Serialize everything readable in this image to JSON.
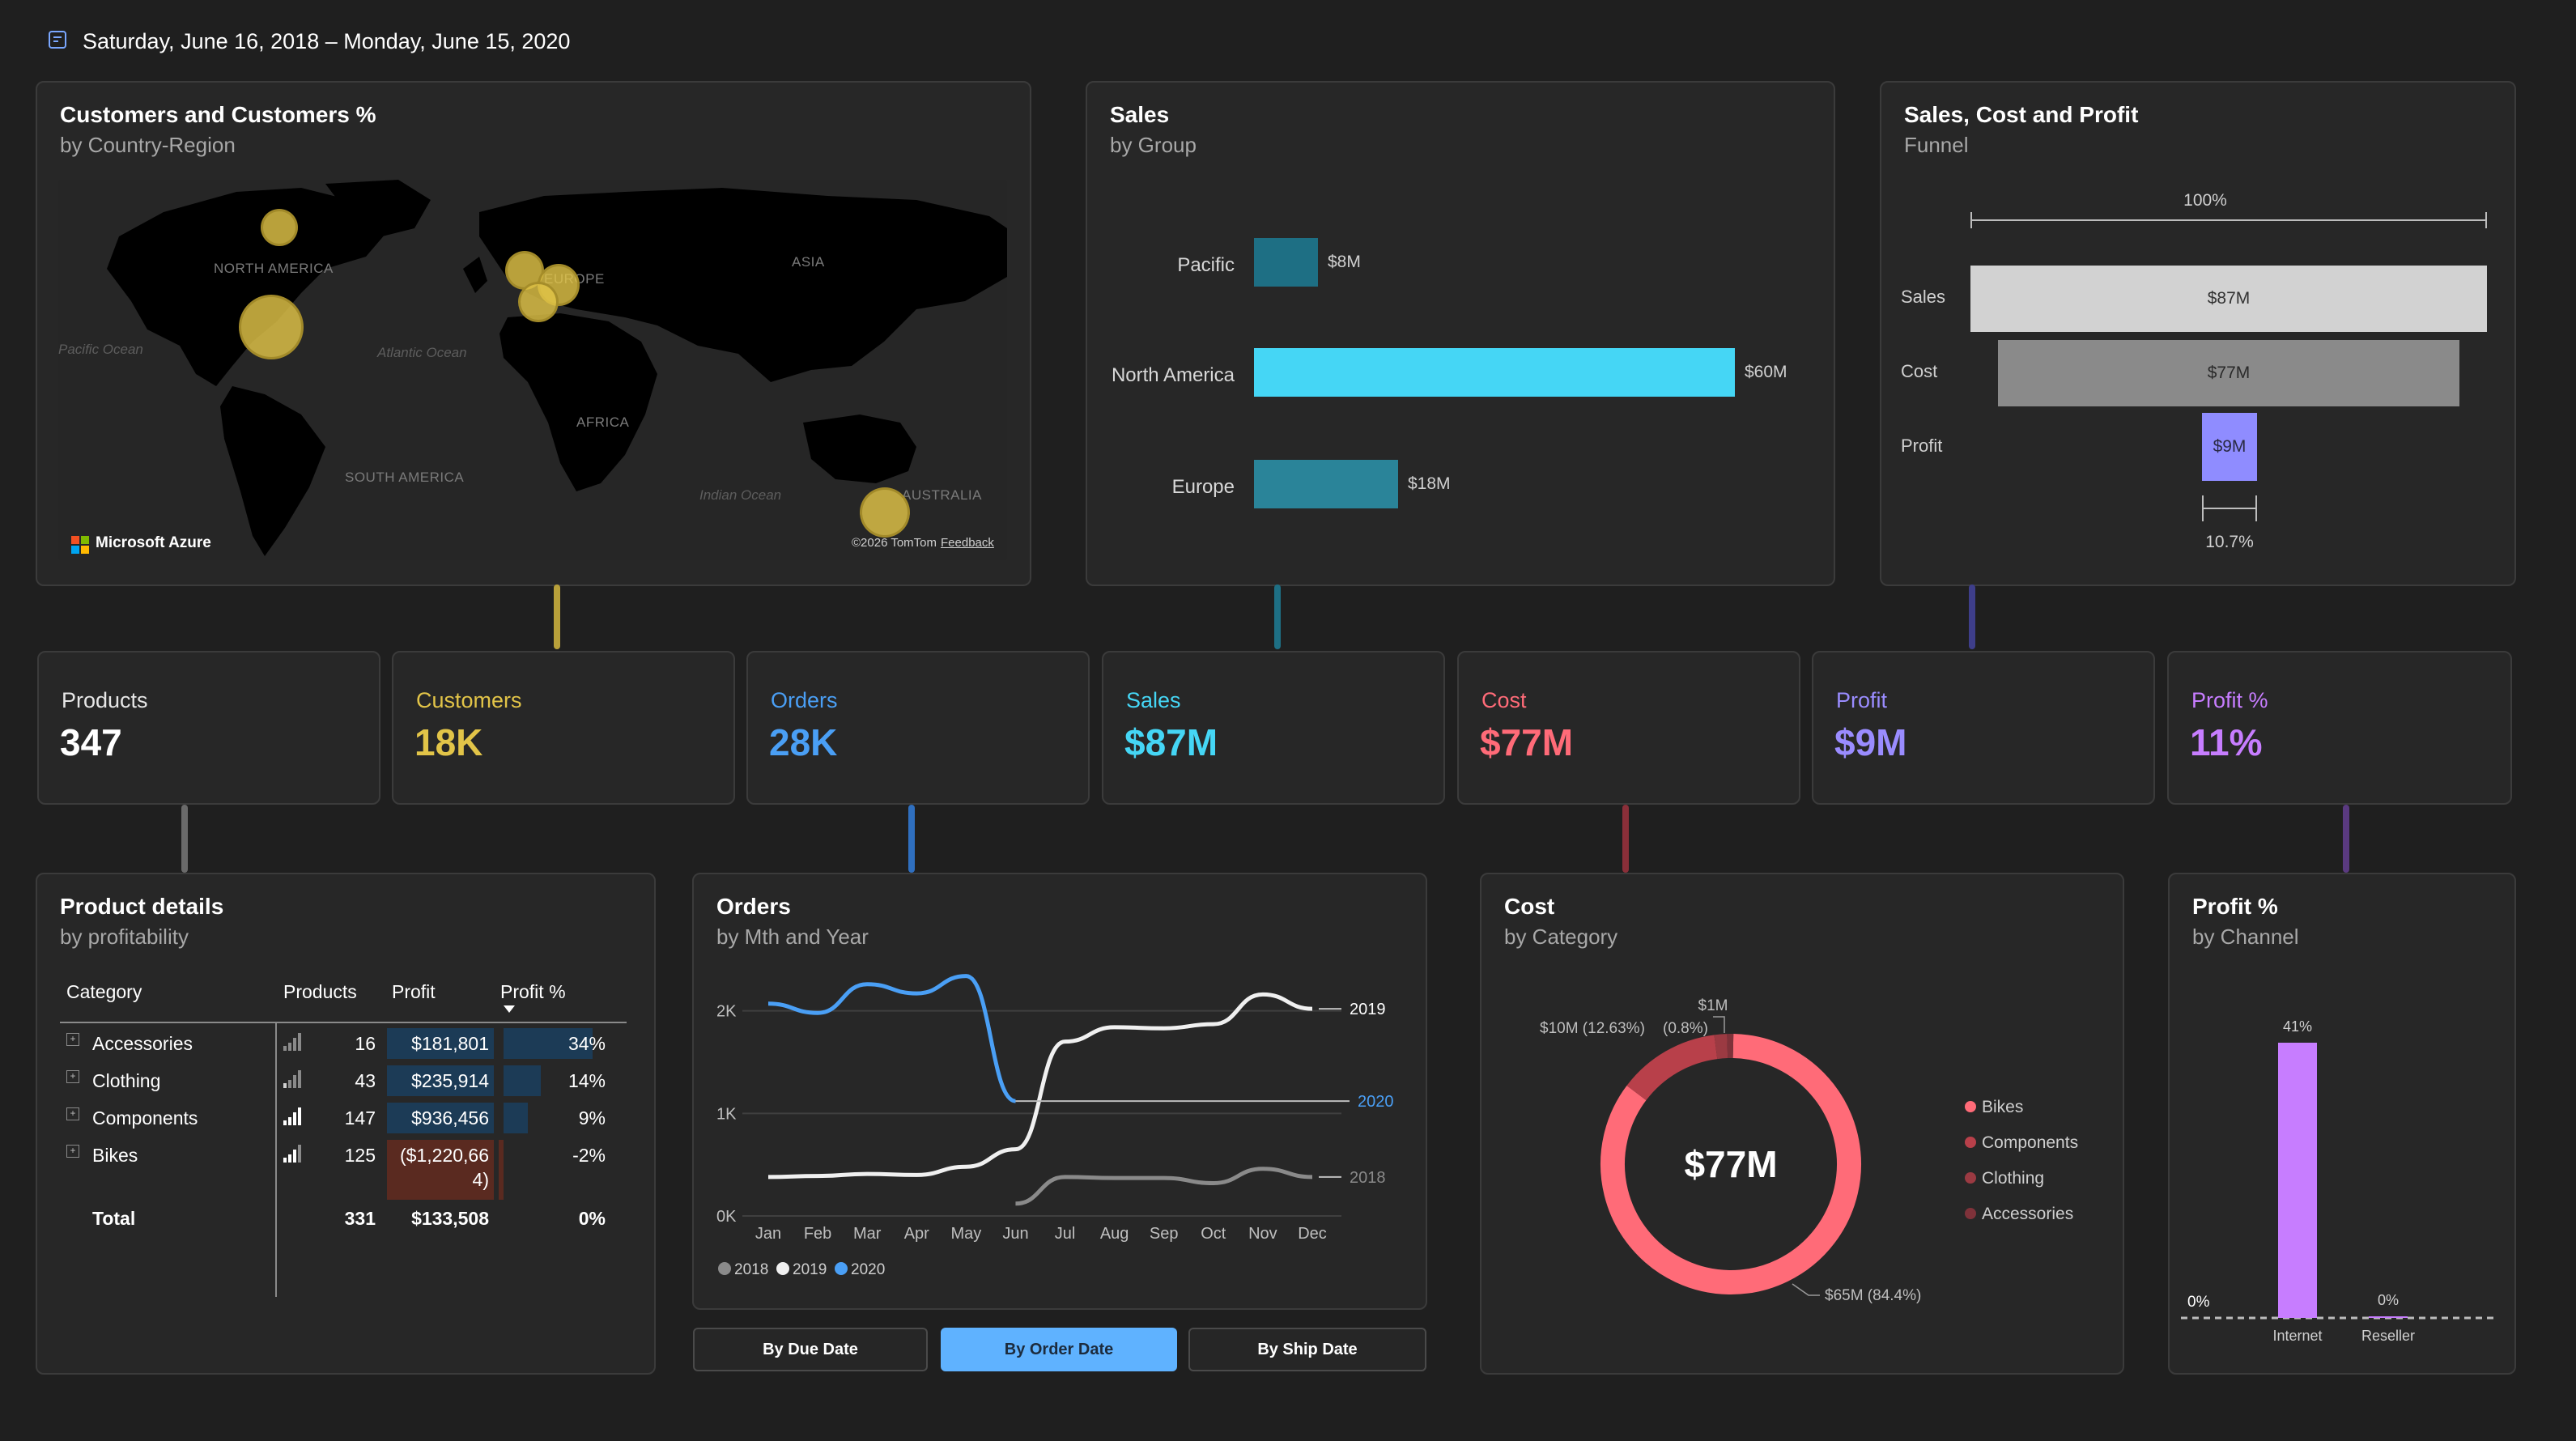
{
  "header": {
    "date_range": "Saturday, June 16, 2018 – Monday, June 15, 2020"
  },
  "colors": {
    "background": "#1f1f1f",
    "card": "#272727",
    "customers": "#e2c448",
    "orders": "#4a9ff5",
    "sales": "#45d6f5",
    "cost": "#ff6b78",
    "profit": "#9a8cff",
    "profit_pct": "#c77dff",
    "products": "#e6e6e6"
  },
  "map_card": {
    "title": "Customers and Customers %",
    "subtitle": "by Country-Region",
    "labels": [
      "NORTH AMERICA",
      "EUROPE",
      "ASIA",
      "AFRICA",
      "SOUTH AMERICA",
      "AUSTRALIA"
    ],
    "oceans": [
      "Pacific Ocean",
      "Atlantic Ocean",
      "Indian Ocean"
    ],
    "brand": "Microsoft Azure",
    "copyright": "©2026 TomTom",
    "feedback": "Feedback"
  },
  "sales_card": {
    "title": "Sales",
    "subtitle": "by Group",
    "bars": [
      {
        "label": "Pacific",
        "value_label": "$8M",
        "value": 8
      },
      {
        "label": "North America",
        "value_label": "$60M",
        "value": 60
      },
      {
        "label": "Europe",
        "value_label": "$18M",
        "value": 18
      }
    ]
  },
  "funnel_card": {
    "title": "Sales, Cost and Profit",
    "subtitle": "Funnel",
    "top_pct": "100%",
    "bottom_pct": "10.7%",
    "stages": [
      {
        "label": "Sales",
        "value_label": "$87M",
        "value": 87
      },
      {
        "label": "Cost",
        "value_label": "$77M",
        "value": 77
      },
      {
        "label": "Profit",
        "value_label": "$9M",
        "value": 9
      }
    ]
  },
  "kpis": [
    {
      "label": "Products",
      "value": "347"
    },
    {
      "label": "Customers",
      "value": "18K"
    },
    {
      "label": "Orders",
      "value": "28K"
    },
    {
      "label": "Sales",
      "value": "$87M"
    },
    {
      "label": "Cost",
      "value": "$77M"
    },
    {
      "label": "Profit",
      "value": "$9M"
    },
    {
      "label": "Profit %",
      "value": "11%"
    }
  ],
  "product_card": {
    "title": "Product details",
    "subtitle": "by profitability",
    "headers": [
      "Category",
      "Products",
      "Profit",
      "Profit %"
    ],
    "rows": [
      {
        "category": "Accessories",
        "products": "16",
        "profit": "$181,801",
        "pct": "34%"
      },
      {
        "category": "Clothing",
        "products": "43",
        "profit": "$235,914",
        "pct": "14%"
      },
      {
        "category": "Components",
        "products": "147",
        "profit": "$936,456",
        "pct": "9%"
      },
      {
        "category": "Bikes",
        "products": "125",
        "profit": "($1,220,664)",
        "profit_line1": "($1,220,66",
        "profit_line2": "4)",
        "pct": "-2%"
      }
    ],
    "total": {
      "label": "Total",
      "products": "331",
      "profit": "$133,508",
      "pct": "0%"
    }
  },
  "orders_card": {
    "title": "Orders",
    "subtitle": "by Mth and Year",
    "buttons": [
      "By Due Date",
      "By Order Date",
      "By Ship Date"
    ],
    "active_button": "By Order Date"
  },
  "chart_data": [
    {
      "type": "line",
      "x": [
        "Jan",
        "Feb",
        "Mar",
        "Apr",
        "May",
        "Jun",
        "Jul",
        "Aug",
        "Sep",
        "Oct",
        "Nov",
        "Dec"
      ],
      "yticks": [
        "0K",
        "1K",
        "2K"
      ],
      "ylim": [
        0,
        2400
      ],
      "series": [
        {
          "name": "2018",
          "color": "#8a8a8a",
          "values": [
            null,
            null,
            null,
            null,
            null,
            120,
            380,
            370,
            370,
            320,
            460,
            380
          ]
        },
        {
          "name": "2019",
          "color": "#f0f0f0",
          "values": [
            380,
            390,
            410,
            400,
            480,
            650,
            1700,
            1840,
            1830,
            1870,
            2160,
            2020
          ]
        },
        {
          "name": "2020",
          "color": "#4a9ff5",
          "values": [
            2070,
            1980,
            2260,
            2170,
            2340,
            1120,
            null,
            null,
            null,
            null,
            null,
            null
          ]
        }
      ]
    },
    {
      "type": "pie",
      "center_label": "$77M",
      "slices": [
        {
          "name": "Bikes",
          "value": 65,
          "label": "$65M (84.4%)",
          "color": "#ff6b78"
        },
        {
          "name": "Components",
          "value": 9.7,
          "label": "$10M (12.63%)",
          "color": "#b8404a"
        },
        {
          "name": "Clothing",
          "value": 1.2,
          "label": "$1M",
          "color": "#9b3a42"
        },
        {
          "name": "Accessories",
          "value": 0.6,
          "label": "(0.8%)",
          "color": "#7f323a"
        }
      ]
    },
    {
      "type": "bar",
      "categories": [
        "Internet",
        "Reseller"
      ],
      "values": [
        41,
        0
      ],
      "value_labels": [
        "41%",
        "0%"
      ],
      "baseline_label": "0%",
      "color": "#c77dff"
    }
  ],
  "cost_card": {
    "title": "Cost",
    "subtitle": "by Category"
  },
  "profit_card": {
    "title": "Profit %",
    "subtitle": "by Channel"
  }
}
